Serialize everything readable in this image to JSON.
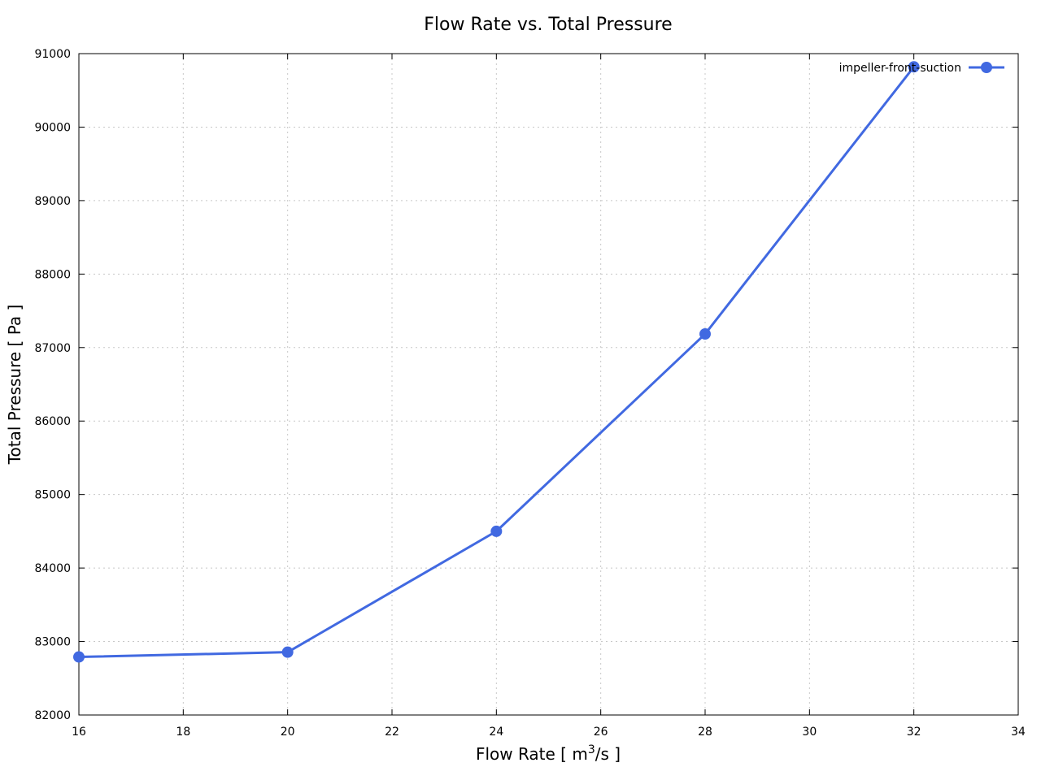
{
  "chart_data": {
    "type": "line",
    "title": "Flow Rate vs. Total Pressure",
    "xlabel": {
      "pre": "Flow Rate [ m",
      "sup": "3",
      "post": "/s ]"
    },
    "ylabel": "Total Pressure [ Pa ]",
    "xlim": [
      16,
      34
    ],
    "ylim": [
      82000,
      91000
    ],
    "xticks": [
      16,
      18,
      20,
      22,
      24,
      26,
      28,
      30,
      32,
      34
    ],
    "yticks": [
      82000,
      83000,
      84000,
      85000,
      86000,
      87000,
      88000,
      89000,
      90000,
      91000
    ],
    "grid": true,
    "legend_position": "top-right",
    "series": [
      {
        "name": "impeller-front-suction",
        "color": "#4169e1",
        "x": [
          16,
          20,
          24,
          28,
          32
        ],
        "y": [
          82790,
          82855,
          84500,
          87185,
          90820
        ]
      }
    ]
  }
}
